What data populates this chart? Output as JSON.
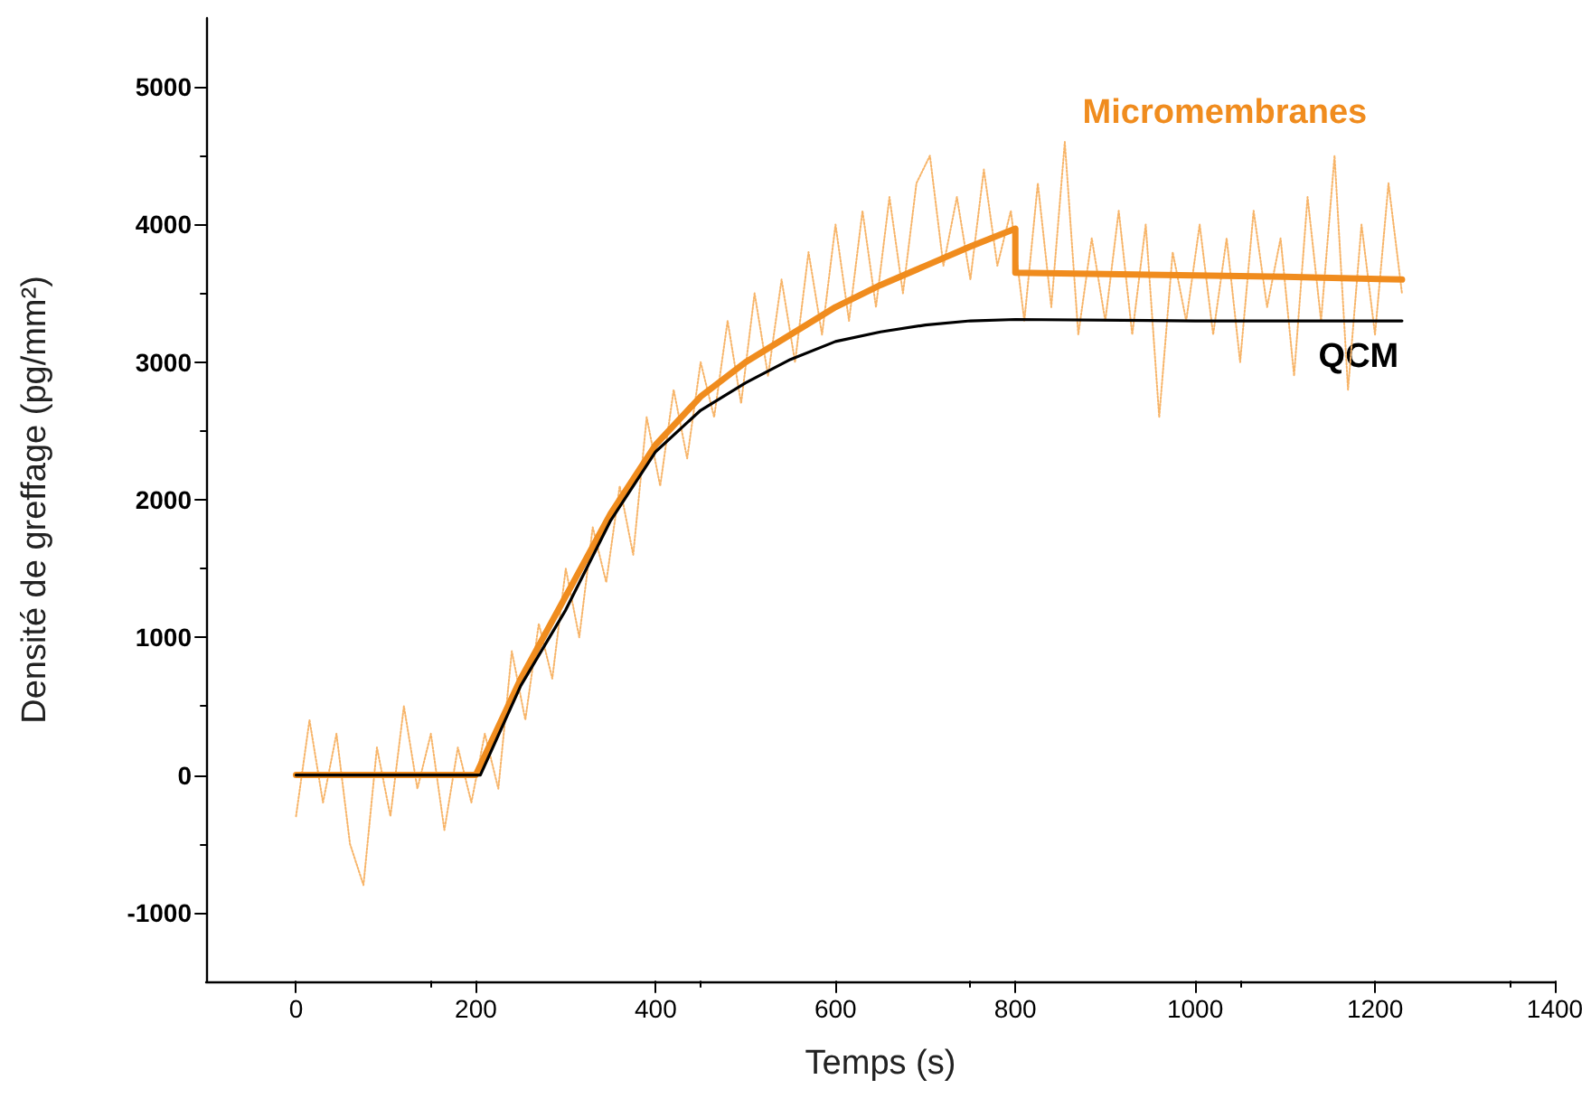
{
  "chart_data": {
    "type": "line",
    "xlabel": "Temps (s)",
    "ylabel": "Densité de greffage (pg/mm²)",
    "xlim": [
      -100,
      1400
    ],
    "xticks": [
      0,
      200,
      400,
      600,
      800,
      1000,
      1200,
      1400
    ],
    "ylim": [
      -1500,
      5500
    ],
    "yticks": [
      -1000,
      0,
      1000,
      2000,
      3000,
      4000,
      5000
    ],
    "grid": false,
    "legend": false,
    "marker": "none",
    "series": [
      {
        "color": "#f7b468",
        "line_style": "dotted",
        "x": [
          0,
          15,
          30,
          45,
          60,
          75,
          90,
          105,
          120,
          135,
          150,
          165,
          180,
          195,
          210,
          225,
          240,
          255,
          270,
          285,
          300,
          315,
          330,
          345,
          360,
          375,
          390,
          405,
          420,
          435,
          450,
          465,
          480,
          495,
          510,
          525,
          540,
          555,
          570,
          585,
          600,
          615,
          630,
          645,
          660,
          675,
          690,
          705,
          720,
          735,
          750,
          765,
          780,
          795,
          810,
          825,
          840,
          855,
          870,
          885,
          900,
          915,
          930,
          945,
          960,
          975,
          990,
          1005,
          1020,
          1035,
          1050,
          1065,
          1080,
          1095,
          1110,
          1125,
          1140,
          1155,
          1170,
          1185,
          1200,
          1215,
          1230
        ],
        "values": [
          -300,
          400,
          -200,
          300,
          -500,
          -800,
          200,
          -300,
          500,
          -100,
          300,
          -400,
          200,
          -200,
          300,
          -100,
          900,
          400,
          1100,
          700,
          1500,
          1000,
          1800,
          1400,
          2100,
          1600,
          2600,
          2100,
          2800,
          2300,
          3000,
          2600,
          3300,
          2700,
          3500,
          2900,
          3600,
          3000,
          3800,
          3200,
          4000,
          3300,
          4100,
          3400,
          4200,
          3500,
          4300,
          4500,
          3700,
          4200,
          3600,
          4400,
          3700,
          4100,
          3300,
          4300,
          3400,
          4600,
          3200,
          3900,
          3300,
          4100,
          3200,
          4000,
          2600,
          3800,
          3300,
          4000,
          3200,
          3900,
          3000,
          4100,
          3400,
          3900,
          2900,
          4200,
          3300,
          4500,
          2800,
          4000,
          3200,
          4300,
          3500
        ]
      },
      {
        "name": "Micromembranes",
        "color": "#f08c1e",
        "line_style": "solid",
        "x": [
          0,
          200,
          250,
          300,
          350,
          400,
          450,
          500,
          550,
          600,
          650,
          700,
          750,
          800,
          800,
          900,
          1000,
          1100,
          1230
        ],
        "values": [
          0,
          0,
          700,
          1300,
          1900,
          2400,
          2750,
          3000,
          3200,
          3400,
          3560,
          3700,
          3840,
          3970,
          3650,
          3640,
          3630,
          3620,
          3600
        ]
      },
      {
        "name": "QCM",
        "color": "#000000",
        "line_style": "solid",
        "x": [
          0,
          205,
          250,
          300,
          350,
          400,
          450,
          500,
          550,
          600,
          650,
          700,
          750,
          800,
          1000,
          1230
        ],
        "values": [
          0,
          0,
          650,
          1200,
          1850,
          2350,
          2650,
          2850,
          3020,
          3150,
          3220,
          3270,
          3300,
          3310,
          3300,
          3300
        ]
      }
    ]
  }
}
